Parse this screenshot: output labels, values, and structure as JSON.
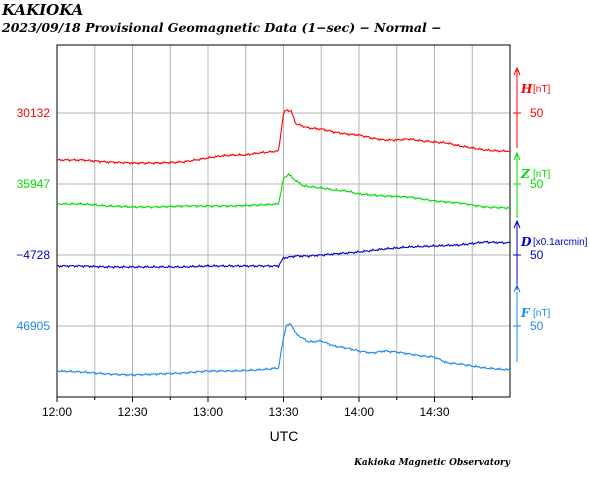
{
  "chart_data": {
    "type": "line",
    "title": "KAKIOKA",
    "subtitle": "2023/09/18  Provisional Geomagnetic Data (1−sec)  − Normal −",
    "xlabel": "UTC",
    "x_ticks": [
      "12:00",
      "12:30",
      "13:00",
      "13:30",
      "14:00",
      "14:30"
    ],
    "x_range_minutes": [
      0,
      180
    ],
    "grid": true,
    "credit": "Kakioka Magnetic Observatory",
    "series": [
      {
        "name": "H",
        "unit": "[nT]",
        "color": "#ff0000",
        "base_label": "30132",
        "scale_label": "50",
        "arrow": "up",
        "points": [
          [
            0,
            -22
          ],
          [
            10,
            -22
          ],
          [
            20,
            -24
          ],
          [
            30,
            -25
          ],
          [
            40,
            -25
          ],
          [
            50,
            -24
          ],
          [
            55,
            -22
          ],
          [
            60,
            -20
          ],
          [
            65,
            -18
          ],
          [
            70,
            -17
          ],
          [
            75,
            -17
          ],
          [
            80,
            -15
          ],
          [
            88,
            -13
          ],
          [
            90,
            24
          ],
          [
            91,
            28
          ],
          [
            93,
            27
          ],
          [
            95,
            14
          ],
          [
            100,
            10
          ],
          [
            105,
            9
          ],
          [
            110,
            6
          ],
          [
            115,
            4
          ],
          [
            120,
            3
          ],
          [
            125,
            0
          ],
          [
            130,
            -2
          ],
          [
            135,
            -2
          ],
          [
            140,
            -1
          ],
          [
            145,
            -3
          ],
          [
            150,
            -4
          ],
          [
            155,
            -5
          ],
          [
            160,
            -8
          ],
          [
            165,
            -10
          ],
          [
            170,
            -12
          ],
          [
            175,
            -13
          ],
          [
            180,
            -13
          ]
        ]
      },
      {
        "name": "Z",
        "unit": "[nT]",
        "color": "#00dd00",
        "base_label": "35947",
        "scale_label": "50",
        "arrow": "up",
        "points": [
          [
            0,
            -10
          ],
          [
            10,
            -10
          ],
          [
            20,
            -12
          ],
          [
            30,
            -13
          ],
          [
            40,
            -13
          ],
          [
            50,
            -12
          ],
          [
            60,
            -12
          ],
          [
            70,
            -12
          ],
          [
            80,
            -11
          ],
          [
            88,
            -10
          ],
          [
            90,
            15
          ],
          [
            92,
            20
          ],
          [
            94,
            15
          ],
          [
            98,
            8
          ],
          [
            105,
            6
          ],
          [
            110,
            4
          ],
          [
            115,
            3
          ],
          [
            120,
            0
          ],
          [
            130,
            -2
          ],
          [
            140,
            -3
          ],
          [
            150,
            -7
          ],
          [
            160,
            -9
          ],
          [
            170,
            -13
          ],
          [
            180,
            -14
          ]
        ]
      },
      {
        "name": "D",
        "unit": "[x0.1arcmin]",
        "color": "#0000cc",
        "base_label": "−4728",
        "scale_label": "50",
        "arrow": "up",
        "points": [
          [
            0,
            -11
          ],
          [
            10,
            -11
          ],
          [
            20,
            -12
          ],
          [
            30,
            -12
          ],
          [
            40,
            -12
          ],
          [
            50,
            -12
          ],
          [
            60,
            -11
          ],
          [
            70,
            -11
          ],
          [
            80,
            -11
          ],
          [
            88,
            -11
          ],
          [
            90,
            -3
          ],
          [
            95,
            -1
          ],
          [
            100,
            -1
          ],
          [
            110,
            1
          ],
          [
            120,
            3
          ],
          [
            130,
            6
          ],
          [
            140,
            8
          ],
          [
            150,
            9
          ],
          [
            160,
            10
          ],
          [
            170,
            13
          ],
          [
            180,
            12
          ]
        ]
      },
      {
        "name": "F",
        "unit": "[nT]",
        "color": "#1a88ee",
        "base_label": "46905",
        "scale_label": "50",
        "arrow": "down",
        "points": [
          [
            0,
            -20
          ],
          [
            10,
            -21
          ],
          [
            20,
            -23
          ],
          [
            30,
            -24
          ],
          [
            40,
            -23
          ],
          [
            50,
            -22
          ],
          [
            60,
            -20
          ],
          [
            70,
            -20
          ],
          [
            80,
            -19
          ],
          [
            88,
            -17
          ],
          [
            90,
            13
          ],
          [
            91,
            25
          ],
          [
            93,
            27
          ],
          [
            95,
            17
          ],
          [
            100,
            9
          ],
          [
            105,
            10
          ],
          [
            110,
            5
          ],
          [
            115,
            3
          ],
          [
            120,
            0
          ],
          [
            125,
            -2
          ],
          [
            130,
            0
          ],
          [
            135,
            -1
          ],
          [
            140,
            -3
          ],
          [
            145,
            -5
          ],
          [
            150,
            -6
          ],
          [
            155,
            -12
          ],
          [
            160,
            -13
          ],
          [
            165,
            -15
          ],
          [
            170,
            -17
          ],
          [
            175,
            -18
          ],
          [
            180,
            -19
          ]
        ]
      }
    ]
  }
}
